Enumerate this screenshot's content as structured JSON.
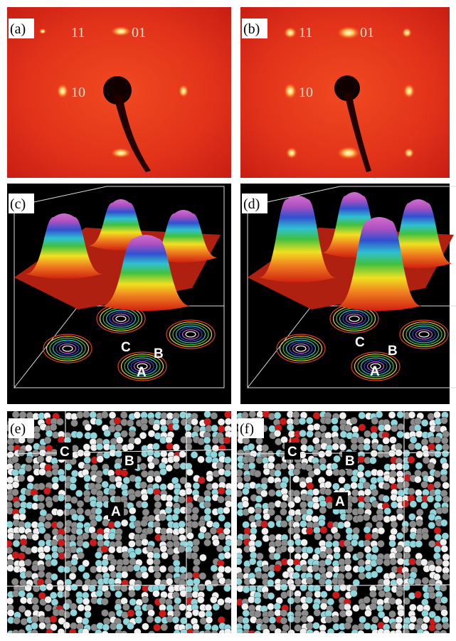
{
  "panels": [
    {
      "label": "(a)",
      "indices": [
        "11",
        "01",
        "10"
      ]
    },
    {
      "label": "(b)",
      "indices": [
        "11",
        "01",
        "10"
      ]
    },
    {
      "label": "(c)",
      "sites": [
        "C",
        "B",
        "A"
      ]
    },
    {
      "label": "(d)",
      "sites": [
        "C",
        "B",
        "A"
      ]
    },
    {
      "label": "(e)",
      "sites": [
        "C",
        "B",
        "A"
      ]
    },
    {
      "label": "(f)",
      "sites": [
        "C",
        "B",
        "A"
      ]
    }
  ]
}
